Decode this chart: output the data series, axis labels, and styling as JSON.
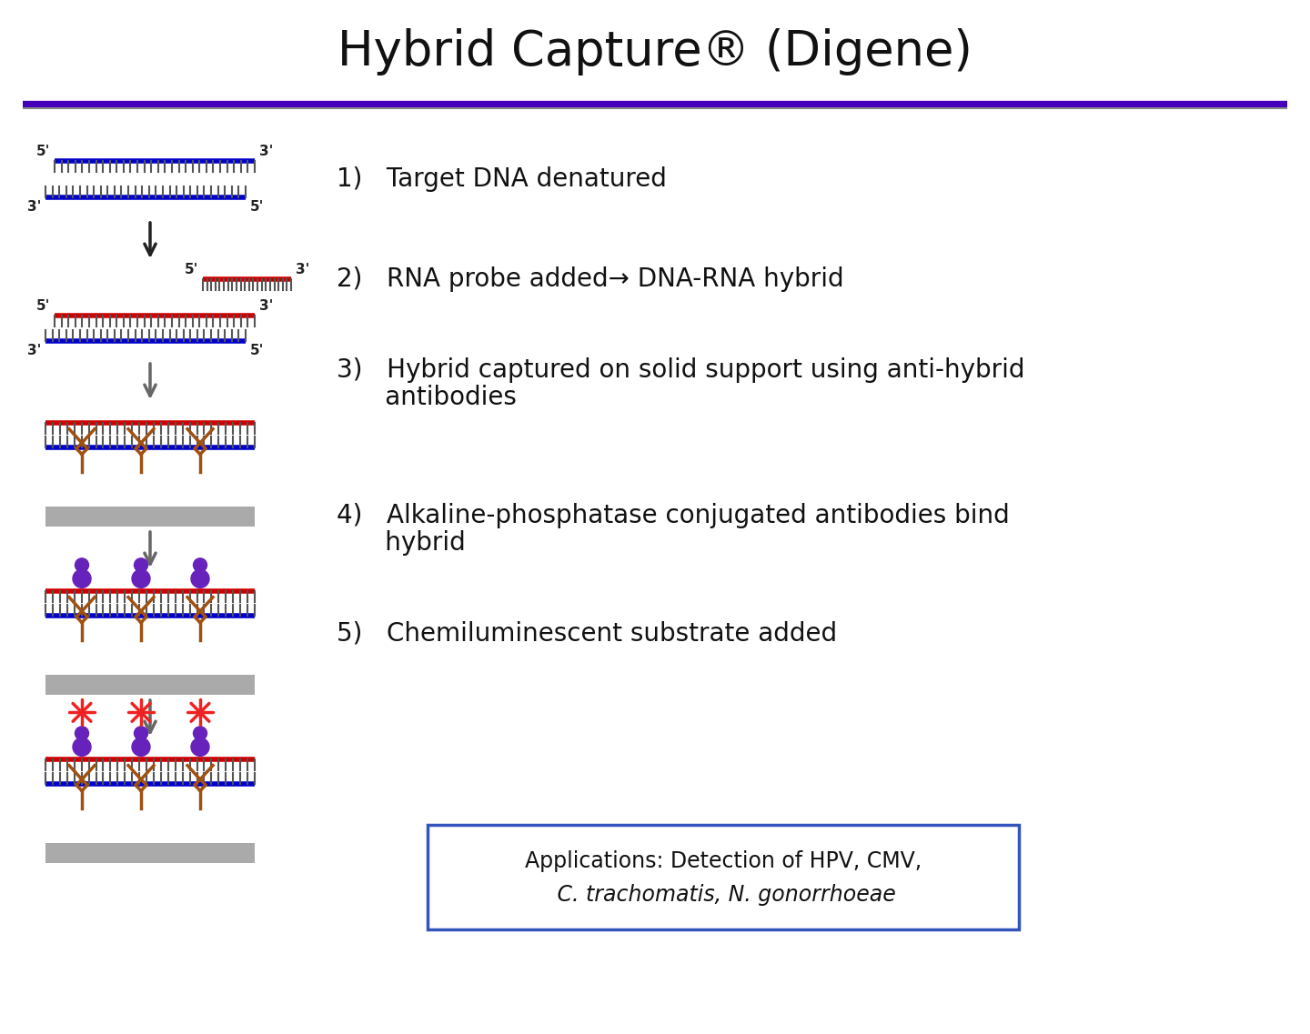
{
  "title": "Hybrid Capture® (Digene)",
  "title_fontsize": 38,
  "title_color": "#111111",
  "purple_line_color": "#4400bb",
  "blue_color": "#0000cc",
  "red_color": "#cc0000",
  "gray_platform_color": "#aaaaaa",
  "brown_color": "#a05010",
  "purple_antibody_color": "#6622bb",
  "star_color": "#ee2222",
  "background": "#ffffff",
  "step1_text": "1)   Target DNA denatured",
  "step2_text": "2)   RNA probe added→ DNA-RNA hybrid",
  "step3_line1": "3)   Hybrid captured on solid support using anti-hybrid",
  "step3_line2": "      antibodies",
  "step4_line1": "4)   Alkaline-phosphatase conjugated antibodies bind",
  "step4_line2": "      hybrid",
  "step5_text": "5)   Chemiluminescent substrate added",
  "step_fontsize": 20,
  "app_line1": "Applications: Detection of HPV, CMV,",
  "app_line2": " C. trachomatis, N. gonorrhoeae",
  "app_fontsize": 17
}
